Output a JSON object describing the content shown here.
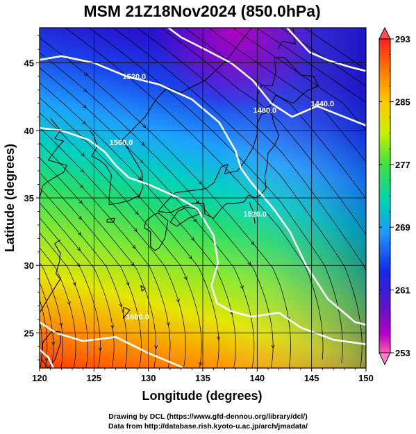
{
  "figure": {
    "title": "MSM 21Z18Nov2024 (850.0hPa)",
    "credits": [
      "Drawing by DCL (https://www.gfd-dennou.org/library/dcl/)",
      "Data from http://database.rish.kyoto-u.ac.jp/arch/jmadata/"
    ]
  },
  "map": {
    "xlabel": "Longitude (degrees)",
    "ylabel": "Latitude  (degrees)",
    "xlim": [
      120,
      150
    ],
    "ylim": [
      22.4,
      47.6
    ],
    "xticks": [
      120,
      125,
      130,
      135,
      140,
      145,
      150
    ],
    "yticks": [
      25,
      30,
      35,
      40,
      45
    ],
    "xtick_labels": [
      "120",
      "125",
      "130",
      "135",
      "140",
      "145",
      "150"
    ],
    "ytick_labels": [
      "25",
      "30",
      "35",
      "40",
      "45"
    ],
    "grid": true,
    "fields": {
      "shading": "temperature (K)",
      "contours": "geopotential height (m)",
      "vectors": "wind streamlines"
    },
    "contour_labels": [
      {
        "text": "1520.0",
        "lon": 128.7,
        "lat": 43.8
      },
      {
        "text": "1440.0",
        "lon": 146.0,
        "lat": 41.8
      },
      {
        "text": "1480.0",
        "lon": 140.7,
        "lat": 41.3
      },
      {
        "text": "1560.0",
        "lon": 127.5,
        "lat": 38.9
      },
      {
        "text": "1520.0",
        "lon": 139.8,
        "lat": 33.6
      },
      {
        "text": "1600.0",
        "lon": 129.0,
        "lat": 26.0
      }
    ]
  },
  "colorbar": {
    "min": 253,
    "max": 293,
    "labels": [
      "293",
      "285",
      "277",
      "269",
      "261",
      "253"
    ],
    "colors": [
      "#ff1f1f",
      "#ff7a00",
      "#ffc800",
      "#c8f000",
      "#40e040",
      "#00d2b4",
      "#1e96ff",
      "#1428e6",
      "#5a14c8",
      "#b400c8",
      "#ff5ab4"
    ]
  }
}
